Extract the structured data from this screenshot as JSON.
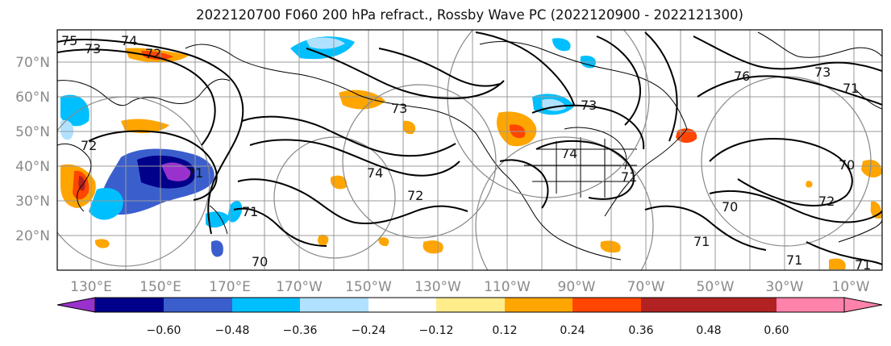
{
  "title": "2022120700 F060 200 hPa refract., Rossby Wave PC (2022120900 - 2022121300)",
  "lat_labels": [
    "70°N",
    "60°N",
    "50°N",
    "40°N",
    "30°N",
    "20°N"
  ],
  "lon_labels": [
    "130°E",
    "150°E",
    "170°E",
    "170°W",
    "150°W",
    "130°W",
    "110°W",
    "90°W",
    "70°W",
    "50°W",
    "30°W",
    "10°W"
  ],
  "colorbar": {
    "ticks": [
      "−0.60",
      "−0.48",
      "−0.36",
      "−0.24",
      "−0.12",
      "0.12",
      "0.24",
      "0.36",
      "0.48",
      "0.60"
    ],
    "colors": [
      "#9932cc",
      "#00008b",
      "#3a5fcd",
      "#00bfff",
      "#b0e2ff",
      "#ffffff",
      "#ffec8b",
      "#ffa500",
      "#ff4500",
      "#b22222",
      "#ff82ab"
    ]
  },
  "contour_labels": [
    "75",
    "73",
    "74",
    "72",
    "73",
    "76",
    "73",
    "71",
    "74",
    "72",
    "71",
    "70",
    "71",
    "72",
    "73",
    "74",
    "71",
    "70",
    "71",
    "71",
    "70",
    "71",
    "72"
  ],
  "colors": {
    "grid": "#999999",
    "circle": "#888888",
    "contour": "#000000",
    "coast": "#000000"
  }
}
